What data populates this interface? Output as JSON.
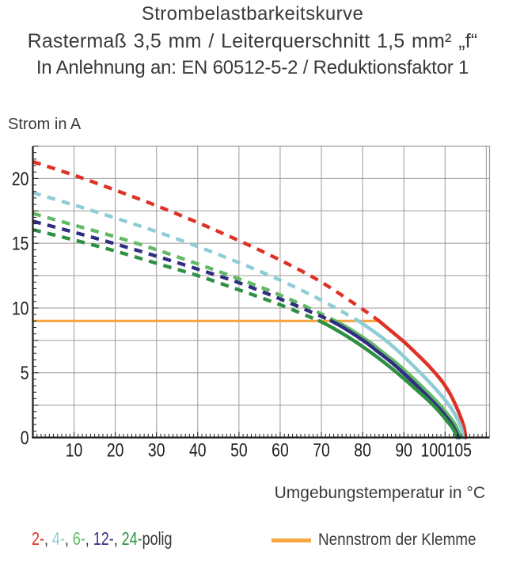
{
  "title": {
    "line1": "Strombelastbarkeitskurve",
    "line2": "Rastermaß 3,5 mm / Leiterquerschnitt 1,5 mm² „f“",
    "line3": "In Anlehnung an: EN 60512-5-2 / Reduktionsfaktor 1"
  },
  "axes": {
    "y_label": "Strom in A",
    "x_label": "Umgebungstemperatur in °C",
    "y_tick_labels": [
      0,
      5,
      10,
      15,
      20
    ],
    "x_tick_labels": [
      10,
      20,
      30,
      40,
      50,
      60,
      70,
      80,
      90,
      100,
      105
    ],
    "x_range": [
      0,
      110.8
    ],
    "y_range": [
      0,
      22.5
    ],
    "grid_step_x": 10,
    "grid_step_y": 2.5,
    "minor_tick_step_x": 1,
    "minor_tick_step_y": 0.5
  },
  "legend": {
    "poles_items": [
      {
        "label": "2-",
        "color": "#de3226"
      },
      {
        "label": "4-",
        "color": "#8fccd6"
      },
      {
        "label": "6-",
        "color": "#62b966"
      },
      {
        "label": "12-",
        "color": "#312e82"
      },
      {
        "label": "24-",
        "color": "#2f9044"
      }
    ],
    "separator": ", ",
    "suffix": "polig",
    "suffix_color": "#3a3a39",
    "nominal_label": "Nennstrom der Klemme",
    "nominal_color": "#f7a643"
  },
  "colors": {
    "grid": "#9b9b9b",
    "axis": "#1d1d1b",
    "text": "#3a3a39"
  },
  "chart_data": {
    "type": "line",
    "title": "Strombelastbarkeitskurve",
    "xlabel": "Umgebungstemperatur in °C",
    "ylabel": "Strom in A",
    "xlim": [
      0,
      110.8
    ],
    "ylim": [
      0,
      22.5
    ],
    "grid": true,
    "nominal_current": {
      "label": "Nennstrom der Klemme",
      "value_a": 9,
      "from_c": 0,
      "to_c": 84.3,
      "color": "#f7a643"
    },
    "series": [
      {
        "name": "2-polig",
        "color": "#de3226",
        "nominal_crossing_c": 84,
        "dashed": {
          "x": [
            0,
            10,
            20,
            30,
            40,
            50,
            60,
            70,
            80,
            84
          ],
          "y": [
            21.3,
            20.25,
            19.1,
            17.9,
            16.6,
            15.2,
            13.7,
            12.0,
            9.9,
            9.0
          ]
        },
        "solid": {
          "x": [
            84,
            87,
            90,
            93,
            96,
            99,
            101,
            102.5,
            103.7,
            104.6,
            105
          ],
          "y": [
            9,
            8.2,
            7.4,
            6.5,
            5.55,
            4.45,
            3.5,
            2.55,
            1.65,
            0.8,
            0
          ]
        }
      },
      {
        "name": "4-polig",
        "color": "#8fccd6",
        "nominal_crossing_c": 79,
        "dashed": {
          "x": [
            0,
            10,
            20,
            30,
            40,
            50,
            60,
            70,
            79
          ],
          "y": [
            18.9,
            17.95,
            16.95,
            15.9,
            14.75,
            13.5,
            12.15,
            10.6,
            9.0
          ]
        },
        "solid": {
          "x": [
            79,
            82,
            85,
            88,
            91,
            94,
            97,
            99.5,
            101.3,
            102.8,
            103.9,
            104.4
          ],
          "y": [
            9,
            8.35,
            7.65,
            6.85,
            5.95,
            5.0,
            4.0,
            3.1,
            2.35,
            1.55,
            0.75,
            0
          ]
        }
      },
      {
        "name": "6-polig",
        "color": "#62b966",
        "nominal_crossing_c": 73.3,
        "dashed": {
          "x": [
            0,
            10,
            20,
            30,
            40,
            50,
            60,
            70,
            73.3
          ],
          "y": [
            17.3,
            16.4,
            15.5,
            14.5,
            13.4,
            12.25,
            11.0,
            9.55,
            9.0
          ]
        },
        "solid": {
          "x": [
            73.3,
            76,
            79,
            82,
            85,
            88,
            91,
            94,
            97,
            99.3,
            101.2,
            102.7,
            103.7
          ],
          "y": [
            9,
            8.55,
            7.95,
            7.3,
            6.55,
            5.8,
            4.95,
            4.05,
            3.1,
            2.3,
            1.55,
            0.85,
            0
          ]
        }
      },
      {
        "name": "12-polig",
        "color": "#312e82",
        "nominal_crossing_c": 72.4,
        "dashed": {
          "x": [
            0,
            10,
            20,
            30,
            40,
            50,
            60,
            70,
            72.4
          ],
          "y": [
            16.7,
            15.85,
            14.95,
            14.0,
            13.0,
            11.95,
            10.7,
            9.35,
            9.0
          ]
        },
        "solid": {
          "x": [
            72.4,
            75,
            78,
            81,
            84,
            87,
            90,
            93,
            96,
            98.3,
            100.3,
            102,
            103.3
          ],
          "y": [
            9,
            8.55,
            7.95,
            7.3,
            6.55,
            5.8,
            4.95,
            4.05,
            3.1,
            2.35,
            1.6,
            0.85,
            0
          ]
        }
      },
      {
        "name": "24-polig",
        "color": "#2f9044",
        "nominal_crossing_c": 69.5,
        "dashed": {
          "x": [
            0,
            10,
            20,
            30,
            40,
            50,
            60,
            69.5
          ],
          "y": [
            16.05,
            15.25,
            14.4,
            13.45,
            12.5,
            11.4,
            10.25,
            9.0
          ]
        },
        "solid": {
          "x": [
            69.5,
            72,
            75,
            78,
            81,
            84,
            87,
            90,
            93,
            96,
            98.3,
            100.3,
            101.9,
            102.9
          ],
          "y": [
            9,
            8.6,
            8.05,
            7.45,
            6.8,
            6.1,
            5.35,
            4.55,
            3.7,
            2.85,
            2.1,
            1.35,
            0.7,
            0
          ]
        }
      }
    ]
  }
}
